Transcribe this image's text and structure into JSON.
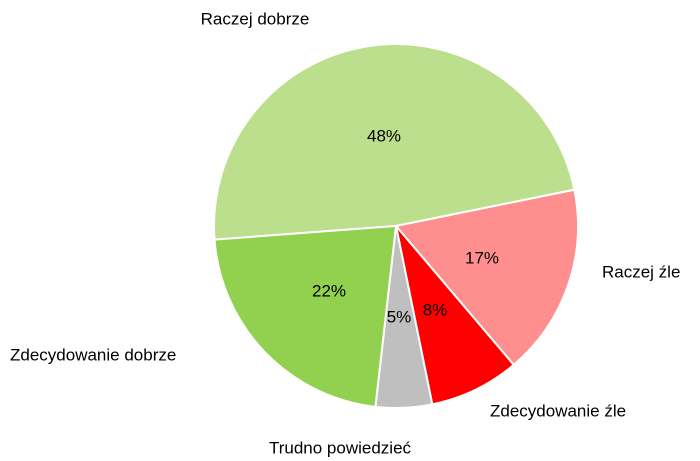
{
  "chart_data": {
    "type": "pie",
    "categories": [
      "Raczej dobrze",
      "Raczej źle",
      "Zdecydowanie źle",
      "Trudno powiedzieć",
      "Zdecydowanie dobrze"
    ],
    "values": [
      48,
      17,
      8,
      5,
      22
    ],
    "value_labels": [
      "48%",
      "17%",
      "8%",
      "5%",
      "22%"
    ],
    "colors": [
      "#bbdf8c",
      "#ff8f8f",
      "#ff0000",
      "#bfbfbf",
      "#92d050"
    ]
  }
}
